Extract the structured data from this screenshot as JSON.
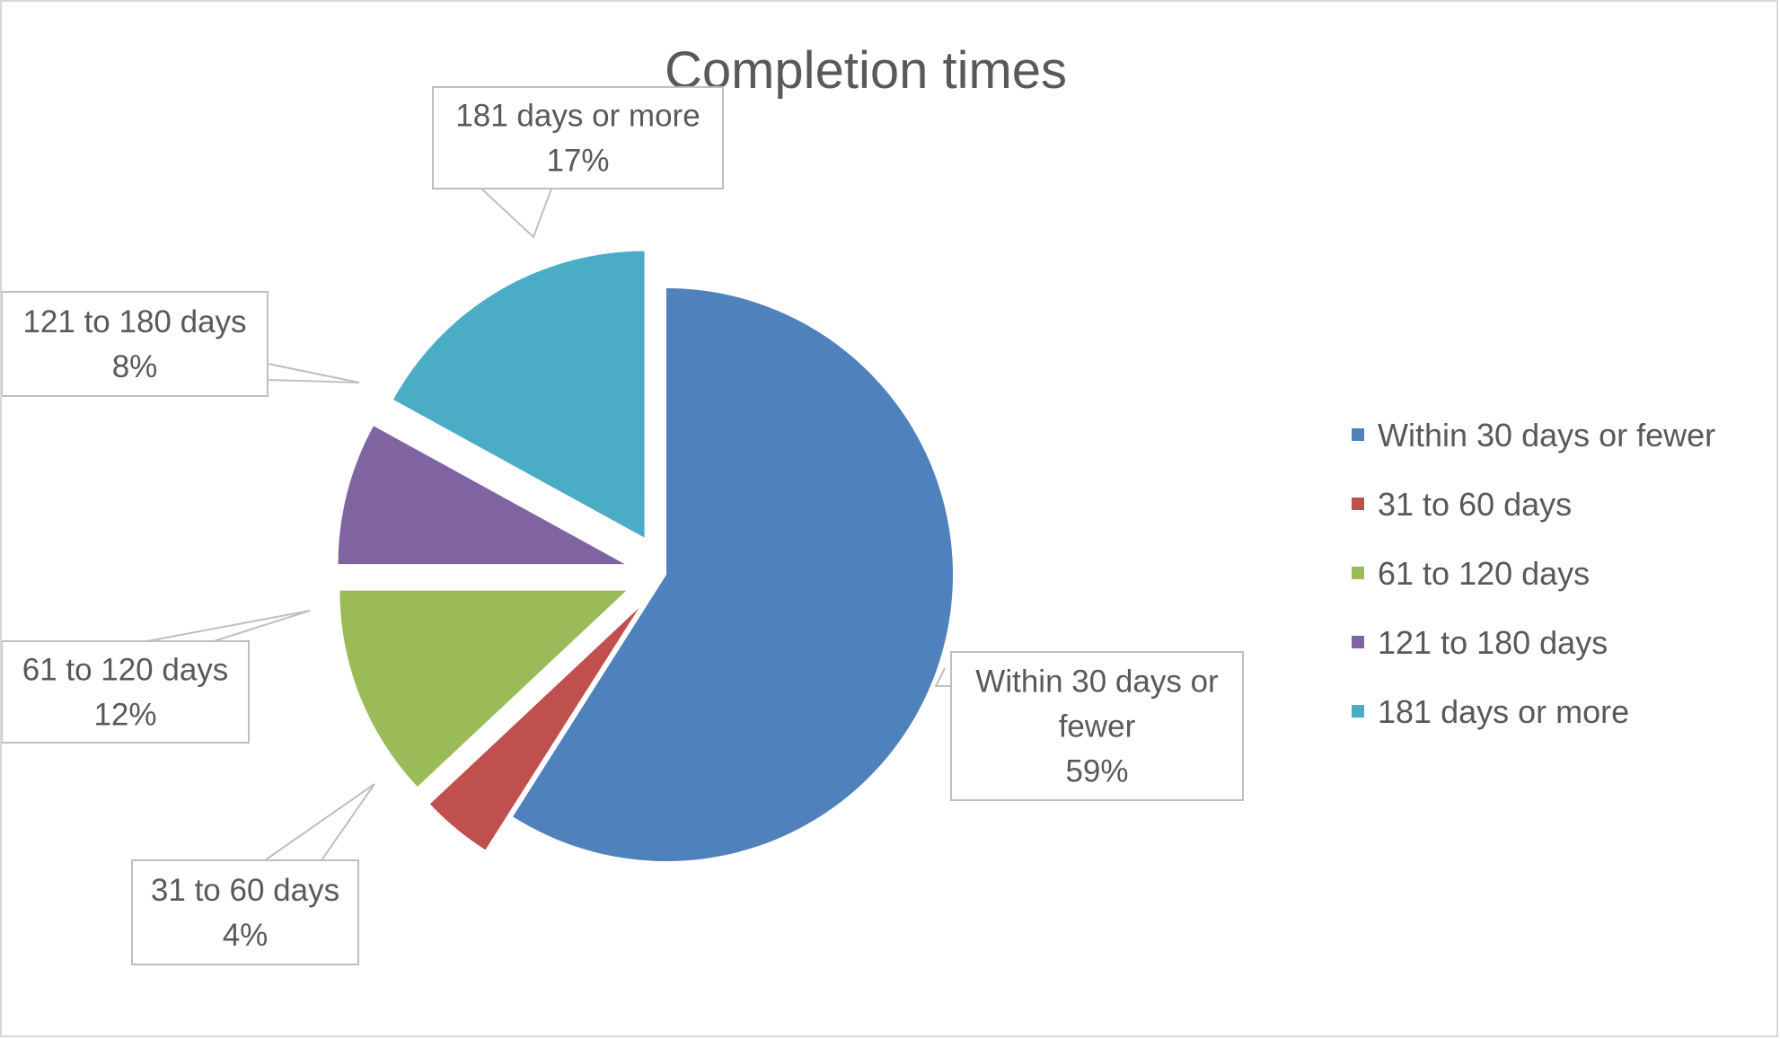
{
  "chart_data": {
    "type": "pie",
    "title": "Completion times",
    "slices": [
      {
        "name": "Within 30 days or fewer",
        "value": 59,
        "label_lines": [
          "Within 30 days or",
          "fewer"
        ],
        "label_value": "59%",
        "color": "#4f81bd"
      },
      {
        "name": "31 to 60 days",
        "value": 4,
        "label_lines": [
          "31 to 60 days"
        ],
        "label_value": "4%",
        "color": "#c0504d"
      },
      {
        "name": "61 to 120 days",
        "value": 12,
        "label_lines": [
          "61 to 120 days"
        ],
        "label_value": "12%",
        "color": "#9bbb59"
      },
      {
        "name": "121 to 180 days",
        "value": 8,
        "label_lines": [
          "121 to 180 days"
        ],
        "label_value": "8%",
        "color": "#8064a2"
      },
      {
        "name": "181 days or more",
        "value": 17,
        "label_lines": [
          "181 days or more"
        ],
        "label_value": "17%",
        "color": "#4bacc6"
      }
    ],
    "legend_position": "right",
    "exploded": true
  }
}
